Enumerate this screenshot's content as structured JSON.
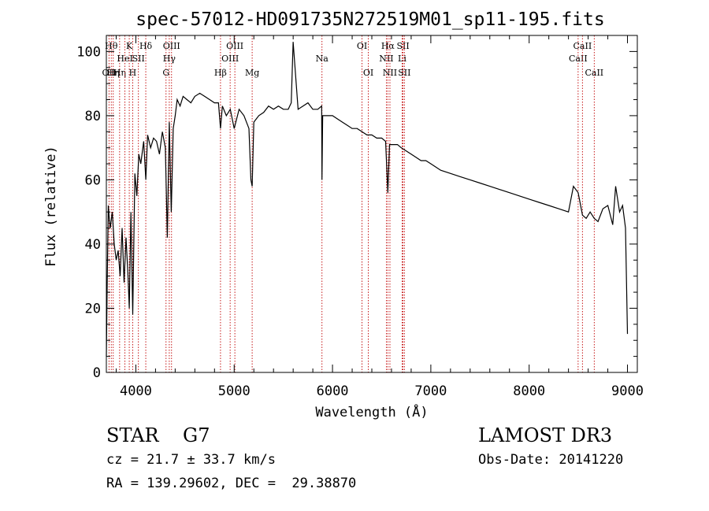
{
  "chart_data": {
    "type": "line",
    "title": "spec-57012-HD091735N272519M01_sp11-195.fits",
    "xlabel": "Wavelength (Å)",
    "ylabel": "Flux (relative)",
    "xlim": [
      3700,
      9100
    ],
    "ylim": [
      0,
      105
    ],
    "xticks": [
      4000,
      5000,
      6000,
      7000,
      8000,
      9000
    ],
    "yticks": [
      0,
      20,
      40,
      60,
      80,
      100
    ],
    "grid": false,
    "series": [
      {
        "name": "flux",
        "x": [
          3700,
          3710,
          3720,
          3730,
          3740,
          3760,
          3780,
          3800,
          3820,
          3840,
          3860,
          3880,
          3900,
          3920,
          3933,
          3950,
          3968,
          3990,
          4010,
          4030,
          4050,
          4080,
          4101,
          4120,
          4150,
          4180,
          4210,
          4240,
          4270,
          4300,
          4320,
          4340,
          4360,
          4380,
          4400,
          4420,
          4450,
          4480,
          4520,
          4560,
          4600,
          4650,
          4700,
          4750,
          4800,
          4840,
          4861,
          4880,
          4920,
          4960,
          5000,
          5050,
          5100,
          5150,
          5170,
          5183,
          5200,
          5250,
          5300,
          5350,
          5400,
          5450,
          5500,
          5550,
          5580,
          5600,
          5650,
          5700,
          5750,
          5800,
          5850,
          5890,
          5893,
          5900,
          5950,
          6000,
          6050,
          6100,
          6150,
          6200,
          6250,
          6300,
          6350,
          6400,
          6450,
          6500,
          6540,
          6563,
          6580,
          6620,
          6660,
          6700,
          6750,
          6800,
          6850,
          6900,
          6950,
          7000,
          7100,
          7200,
          7300,
          7400,
          7500,
          7600,
          7700,
          7800,
          7900,
          8000,
          8100,
          8200,
          8300,
          8400,
          8450,
          8498,
          8542,
          8580,
          8620,
          8662,
          8700,
          8750,
          8800,
          8850,
          8880,
          8920,
          8950,
          8980,
          9000
        ],
        "values": [
          5,
          30,
          52,
          48,
          45,
          50,
          40,
          35,
          38,
          30,
          45,
          28,
          42,
          30,
          20,
          50,
          18,
          62,
          55,
          68,
          65,
          72,
          60,
          74,
          70,
          73,
          72,
          68,
          75,
          70,
          42,
          78,
          50,
          76,
          80,
          85,
          83,
          86,
          85,
          84,
          86,
          87,
          86,
          85,
          84,
          84,
          76,
          83,
          80,
          82,
          76,
          82,
          80,
          76,
          60,
          58,
          78,
          80,
          81,
          83,
          82,
          83,
          82,
          82,
          84,
          103,
          82,
          83,
          84,
          82,
          82,
          83,
          60,
          80,
          80,
          80,
          79,
          78,
          77,
          76,
          76,
          75,
          74,
          74,
          73,
          73,
          72,
          56,
          71,
          71,
          71,
          70,
          69,
          68,
          67,
          66,
          66,
          65,
          63,
          62,
          61,
          60,
          59,
          58,
          57,
          56,
          55,
          54,
          53,
          52,
          51,
          50,
          58,
          56,
          49,
          48,
          50,
          48,
          47,
          51,
          52,
          46,
          58,
          50,
          52,
          45,
          12
        ]
      }
    ],
    "lines": [
      {
        "x": 3727,
        "label": "OII",
        "row": 2
      },
      {
        "x": 3750,
        "label": "Hθ",
        "row": 0
      },
      {
        "x": 3770,
        "label": "Hη",
        "row": 2
      },
      {
        "x": 3835,
        "label": "Hη",
        "row": 2
      },
      {
        "x": 3889,
        "label": "HeI",
        "row": 1
      },
      {
        "x": 3933,
        "label": "K",
        "row": 0
      },
      {
        "x": 3968,
        "label": "H",
        "row": 2
      },
      {
        "x": 4026,
        "label": "SII",
        "row": 1
      },
      {
        "x": 4101,
        "label": "Hδ",
        "row": 0
      },
      {
        "x": 4307,
        "label": "G",
        "row": 2
      },
      {
        "x": 4340,
        "label": "Hγ",
        "row": 1
      },
      {
        "x": 4363,
        "label": "OIII",
        "row": 0
      },
      {
        "x": 4861,
        "label": "Hβ",
        "row": 2
      },
      {
        "x": 4959,
        "label": "OIII",
        "row": 1
      },
      {
        "x": 5007,
        "label": "OIII",
        "row": 0
      },
      {
        "x": 5183,
        "label": "Mg",
        "row": 2
      },
      {
        "x": 5893,
        "label": "Na",
        "row": 1
      },
      {
        "x": 6300,
        "label": "OI",
        "row": 0
      },
      {
        "x": 6364,
        "label": "OI",
        "row": 2
      },
      {
        "x": 6548,
        "label": "NII",
        "row": 1
      },
      {
        "x": 6563,
        "label": "Hα",
        "row": 0
      },
      {
        "x": 6584,
        "label": "NII",
        "row": 2
      },
      {
        "x": 6708,
        "label": "Li",
        "row": 1
      },
      {
        "x": 6717,
        "label": "SII",
        "row": 0
      },
      {
        "x": 6731,
        "label": "SII",
        "row": 2
      },
      {
        "x": 8498,
        "label": "CaII",
        "row": 1
      },
      {
        "x": 8542,
        "label": "CaII",
        "row": 0
      },
      {
        "x": 8662,
        "label": "CaII",
        "row": 2
      }
    ]
  },
  "info": {
    "classification": "STAR    G7",
    "survey": "LAMOST DR3",
    "cz": "cz = 21.7 ± 33.7 km/s",
    "obs_date": "Obs-Date: 20141220",
    "radec": "RA = 139.29602, DEC =  29.38870"
  }
}
